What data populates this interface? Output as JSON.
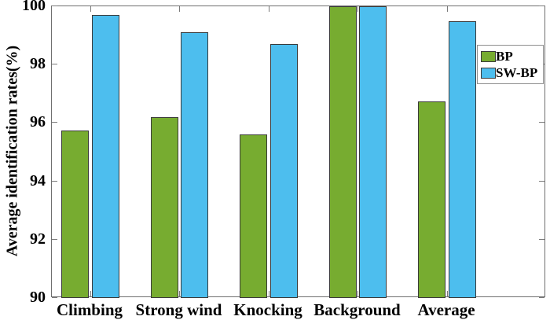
{
  "chart_data": {
    "type": "bar",
    "title": "",
    "xlabel": "",
    "ylabel": "Average identification rates(%)",
    "categories": [
      "Climbing",
      "Strong wind",
      "Knocking",
      "Background",
      "Average"
    ],
    "series": [
      {
        "name": "BP",
        "color": "#77AC30",
        "values": [
          95.75,
          96.2,
          95.6,
          100,
          96.75
        ]
      },
      {
        "name": "SW-BP",
        "color": "#4DBEEE",
        "values": [
          99.7,
          99.1,
          98.7,
          100,
          99.5
        ]
      }
    ],
    "ylim": [
      90,
      100
    ],
    "yticks": [
      90,
      92,
      94,
      96,
      98,
      100
    ],
    "grid": false,
    "legend_position": "upper-right-inside",
    "colors": {
      "bar_edge": "#3a3a3a",
      "axis": "#6f6f6f",
      "text": "#000000",
      "background": "#ffffff"
    }
  }
}
